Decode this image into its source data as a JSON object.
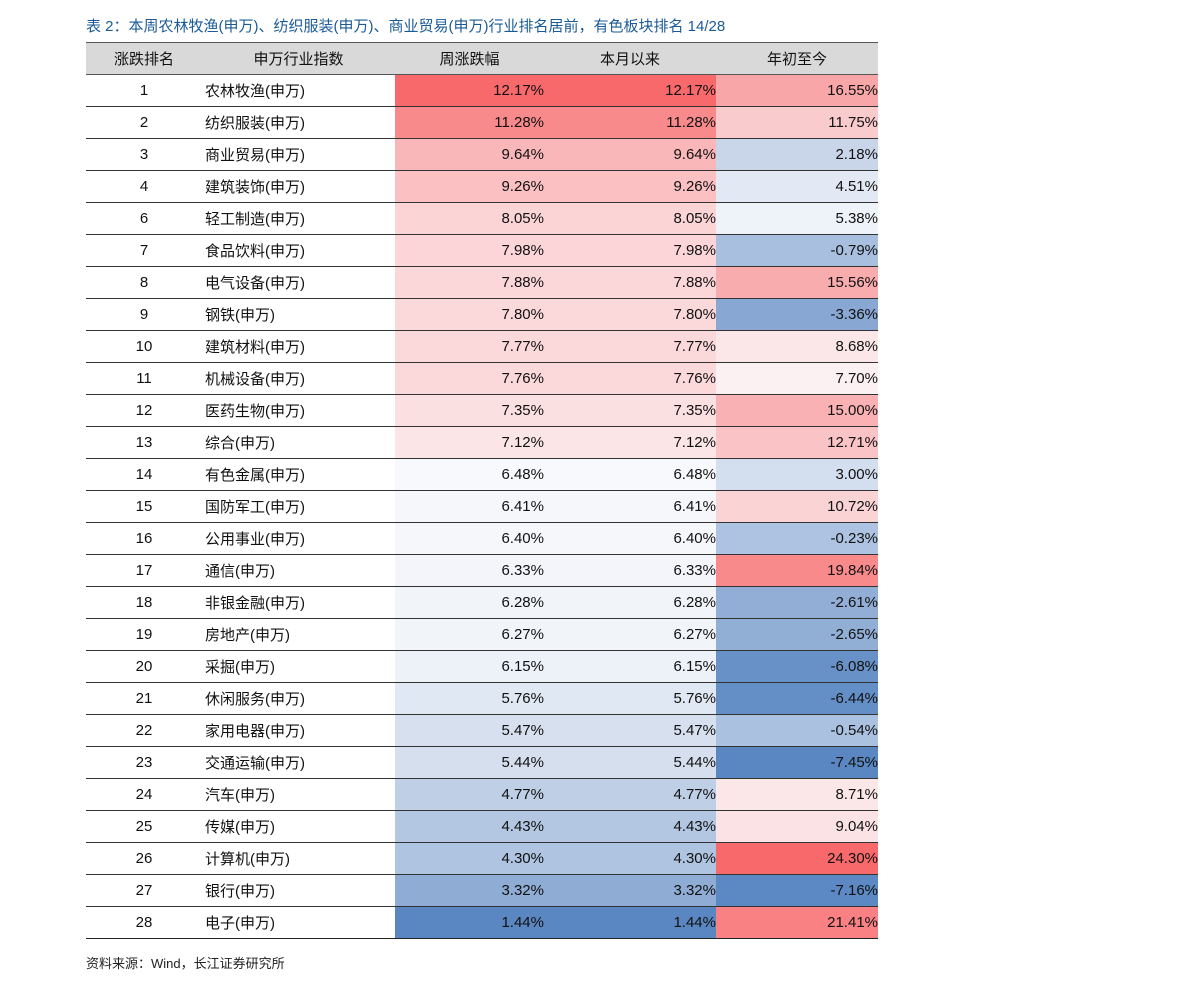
{
  "caption": "表 2：本周农林牧渔(申万)、纺织服装(申万)、商业贸易(申万)行业排名居前，有色板块排名 14/28",
  "source": "资料来源：Wind，长江证券研究所",
  "table": {
    "headers": [
      "涨跌排名",
      "申万行业指数",
      "周涨跌幅",
      "本月以来",
      "年初至今"
    ],
    "rows": [
      {
        "rank": "1",
        "name": "农林牧渔(申万)",
        "week": "12.17%",
        "month": "12.17%",
        "ytd": "16.55%",
        "week_bg": "#f8696b",
        "month_bg": "#f8696b",
        "ytd_bg": "#f9a6a8"
      },
      {
        "rank": "2",
        "name": "纺织服装(申万)",
        "week": "11.28%",
        "month": "11.28%",
        "ytd": "11.75%",
        "week_bg": "#f98a8c",
        "month_bg": "#f98a8c",
        "ytd_bg": "#f9cbcd"
      },
      {
        "rank": "3",
        "name": "商业贸易(申万)",
        "week": "9.64%",
        "month": "9.64%",
        "ytd": "2.18%",
        "week_bg": "#fab7b9",
        "month_bg": "#fab7b9",
        "ytd_bg": "#c9d6ea"
      },
      {
        "rank": "4",
        "name": "建筑装饰(申万)",
        "week": "9.26%",
        "month": "9.26%",
        "ytd": "4.51%",
        "week_bg": "#fac0c2",
        "month_bg": "#fac0c2",
        "ytd_bg": "#e2e9f4"
      },
      {
        "rank": "6",
        "name": "轻工制造(申万)",
        "week": "8.05%",
        "month": "8.05%",
        "ytd": "5.38%",
        "week_bg": "#fbd4d6",
        "month_bg": "#fbd4d6",
        "ytd_bg": "#eef2f9"
      },
      {
        "rank": "7",
        "name": "食品饮料(申万)",
        "week": "7.98%",
        "month": "7.98%",
        "ytd": "-0.79%",
        "week_bg": "#fbd5d7",
        "month_bg": "#fbd5d7",
        "ytd_bg": "#a8bfdf"
      },
      {
        "rank": "8",
        "name": "电气设备(申万)",
        "week": "7.88%",
        "month": "7.88%",
        "ytd": "15.56%",
        "week_bg": "#fbd7d9",
        "month_bg": "#fbd7d9",
        "ytd_bg": "#f9acae"
      },
      {
        "rank": "9",
        "name": "钢铁(申万)",
        "week": "7.80%",
        "month": "7.80%",
        "ytd": "-3.36%",
        "week_bg": "#fbd8da",
        "month_bg": "#fbd8da",
        "ytd_bg": "#88a7d2"
      },
      {
        "rank": "10",
        "name": "建筑材料(申万)",
        "week": "7.77%",
        "month": "7.77%",
        "ytd": "8.68%",
        "week_bg": "#fbd9db",
        "month_bg": "#fbd9db",
        "ytd_bg": "#fbe6e8"
      },
      {
        "rank": "11",
        "name": "机械设备(申万)",
        "week": "7.76%",
        "month": "7.76%",
        "ytd": "7.70%",
        "week_bg": "#fbd9db",
        "month_bg": "#fbd9db",
        "ytd_bg": "#fcf1f2"
      },
      {
        "rank": "12",
        "name": "医药生物(申万)",
        "week": "7.35%",
        "month": "7.35%",
        "ytd": "15.00%",
        "week_bg": "#fbe0e2",
        "month_bg": "#fbe0e2",
        "ytd_bg": "#f9b1b3"
      },
      {
        "rank": "13",
        "name": "综合(申万)",
        "week": "7.12%",
        "month": "7.12%",
        "ytd": "12.71%",
        "week_bg": "#fce5e7",
        "month_bg": "#fce5e7",
        "ytd_bg": "#fac4c6"
      },
      {
        "rank": "14",
        "name": "有色金属(申万)",
        "week": "6.48%",
        "month": "6.48%",
        "ytd": "3.00%",
        "week_bg": "#f8f9fc",
        "month_bg": "#f8f9fc",
        "ytd_bg": "#d3deee"
      },
      {
        "rank": "15",
        "name": "国防军工(申万)",
        "week": "6.41%",
        "month": "6.41%",
        "ytd": "10.72%",
        "week_bg": "#f5f7fb",
        "month_bg": "#f5f7fb",
        "ytd_bg": "#fad3d5"
      },
      {
        "rank": "16",
        "name": "公用事业(申万)",
        "week": "6.40%",
        "month": "6.40%",
        "ytd": "-0.23%",
        "week_bg": "#f5f7fb",
        "month_bg": "#f5f7fb",
        "ytd_bg": "#adc3e1"
      },
      {
        "rank": "17",
        "name": "通信(申万)",
        "week": "6.33%",
        "month": "6.33%",
        "ytd": "19.84%",
        "week_bg": "#f3f5fa",
        "month_bg": "#f3f5fa",
        "ytd_bg": "#f98a8c"
      },
      {
        "rank": "18",
        "name": "非银金融(申万)",
        "week": "6.28%",
        "month": "6.28%",
        "ytd": "-2.61%",
        "week_bg": "#f1f4f9",
        "month_bg": "#f1f4f9",
        "ytd_bg": "#92aed6"
      },
      {
        "rank": "19",
        "name": "房地产(申万)",
        "week": "6.27%",
        "month": "6.27%",
        "ytd": "-2.65%",
        "week_bg": "#f1f4f9",
        "month_bg": "#f1f4f9",
        "ytd_bg": "#91aed5"
      },
      {
        "rank": "20",
        "name": "采掘(申万)",
        "week": "6.15%",
        "month": "6.15%",
        "ytd": "-6.08%",
        "week_bg": "#edf1f8",
        "month_bg": "#edf1f8",
        "ytd_bg": "#6891c8"
      },
      {
        "rank": "21",
        "name": "休闲服务(申万)",
        "week": "5.76%",
        "month": "5.76%",
        "ytd": "-6.44%",
        "week_bg": "#e0e8f3",
        "month_bg": "#e0e8f3",
        "ytd_bg": "#648ec6"
      },
      {
        "rank": "22",
        "name": "家用电器(申万)",
        "week": "5.47%",
        "month": "5.47%",
        "ytd": "-0.54%",
        "week_bg": "#d6e0ef",
        "month_bg": "#d6e0ef",
        "ytd_bg": "#aac1e0"
      },
      {
        "rank": "23",
        "name": "交通运输(申万)",
        "week": "5.44%",
        "month": "5.44%",
        "ytd": "-7.45%",
        "week_bg": "#d5dfee",
        "month_bg": "#d5dfee",
        "ytd_bg": "#5a87c2"
      },
      {
        "rank": "24",
        "name": "汽车(申万)",
        "week": "4.77%",
        "month": "4.77%",
        "ytd": "8.71%",
        "week_bg": "#bfcfe6",
        "month_bg": "#bfcfe6",
        "ytd_bg": "#fbe6e8"
      },
      {
        "rank": "25",
        "name": "传媒(申万)",
        "week": "4.43%",
        "month": "4.43%",
        "ytd": "9.04%",
        "week_bg": "#b3c7e2",
        "month_bg": "#b3c7e2",
        "ytd_bg": "#fbe2e4"
      },
      {
        "rank": "26",
        "name": "计算机(申万)",
        "week": "4.30%",
        "month": "4.30%",
        "ytd": "24.30%",
        "week_bg": "#afc4e0",
        "month_bg": "#afc4e0",
        "ytd_bg": "#f8696b"
      },
      {
        "rank": "27",
        "name": "银行(申万)",
        "week": "3.32%",
        "month": "3.32%",
        "ytd": "-7.16%",
        "week_bg": "#8eacd4",
        "month_bg": "#8eacd4",
        "ytd_bg": "#5c89c3"
      },
      {
        "rank": "28",
        "name": "电子(申万)",
        "week": "1.44%",
        "month": "1.44%",
        "ytd": "21.41%",
        "week_bg": "#5a87c2",
        "month_bg": "#5a87c2",
        "ytd_bg": "#f98083"
      }
    ]
  }
}
